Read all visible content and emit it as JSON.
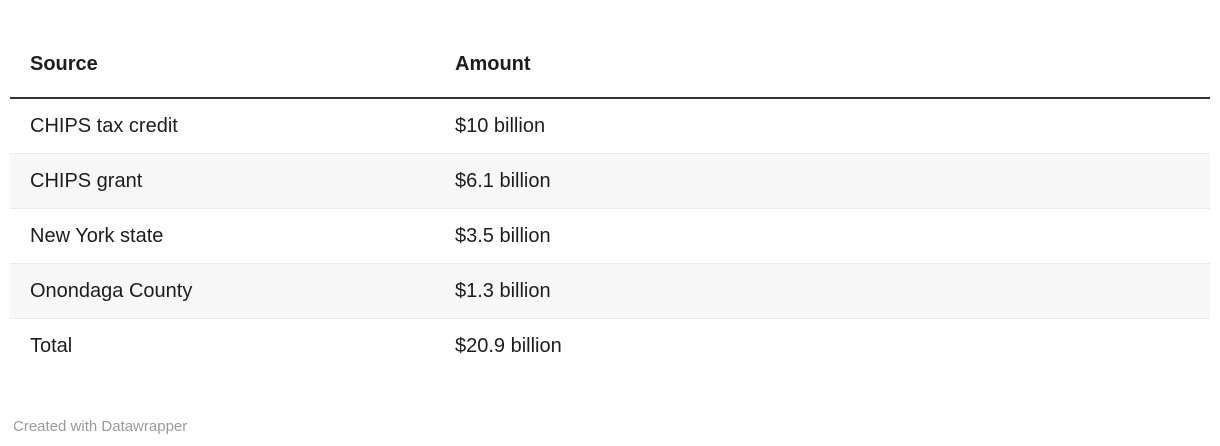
{
  "chart_data": {
    "type": "table",
    "title": "",
    "columns": [
      "Source",
      "Amount"
    ],
    "rows": [
      [
        "CHIPS tax credit",
        "$10 billion"
      ],
      [
        "CHIPS grant",
        "$6.1 billion"
      ],
      [
        "New York state",
        "$3.5 billion"
      ],
      [
        "Onondaga County",
        "$1.3 billion"
      ],
      [
        "Total",
        "$20.9 billion"
      ]
    ],
    "values_billions_usd": [
      10,
      6.1,
      3.5,
      1.3,
      20.9
    ],
    "layout_hints": {
      "zebra_striping": true,
      "striped_row_indexes": [
        1,
        3
      ],
      "header_rule": true
    }
  },
  "footer": {
    "attribution": "Created with Datawrapper"
  },
  "colors": {
    "background": "#ffffff",
    "text": "#1d1d1d",
    "header_rule": "#333333",
    "row_stripe": "#f7f7f7",
    "row_border": "#e8e8e8",
    "footer_text": "#9b9b9b"
  }
}
